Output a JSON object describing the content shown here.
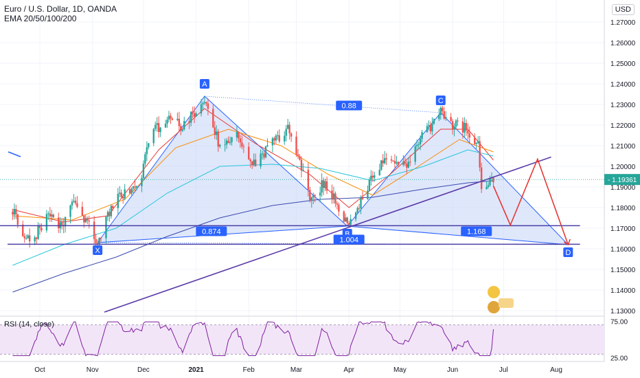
{
  "header": {
    "symbol_title": "Euro / U.S. Dollar, 1D, OANDA",
    "indicator": "EMA 20/50/100/200",
    "currency": "USD",
    "rsi_label": "RSI (14, close)"
  },
  "colors": {
    "up": "#26a69a",
    "down": "#ef5350",
    "ema20": "#e53935",
    "ema50": "#fb8c00",
    "ema100": "#26c6da",
    "ema200": "#3949ab",
    "pattern_fill": "#c5d3f7",
    "pattern_line": "#2962ff",
    "level_line": "#4a3fa6",
    "trend_line": "#5b3aa8",
    "projection": "#e53935",
    "rsi_line": "#7e1fa0",
    "rsi_band": "#f3e5f8",
    "price_label": "#26a69a"
  },
  "chart_data": {
    "type": "candlestick",
    "title": "Euro / U.S. Dollar, 1D, OANDA",
    "x_tick_labels": [
      "Oct",
      "Nov",
      "Dec",
      "2021",
      "Feb",
      "Mar",
      "Apr",
      "May",
      "Jun",
      "Jul",
      "Aug"
    ],
    "x_ticks": [
      "2020-10-01",
      "2020-11-01",
      "2020-12-01",
      "2021-01-01",
      "2021-02-01",
      "2021-03-01",
      "2021-04-01",
      "2021-05-01",
      "2021-06-01",
      "2021-07-01",
      "2021-08-01"
    ],
    "y_tick_labels": [
      "1.27000",
      "1.26000",
      "1.25000",
      "1.24000",
      "1.23000",
      "1.22000",
      "1.21000",
      "1.20000",
      "1.19000",
      "1.18000",
      "1.17000",
      "1.16000",
      "1.15000",
      "1.14000",
      "1.13000"
    ],
    "y_ticks": [
      1.27,
      1.26,
      1.25,
      1.24,
      1.23,
      1.22,
      1.21,
      1.2,
      1.19,
      1.18,
      1.17,
      1.16,
      1.15,
      1.14,
      1.13
    ],
    "ylim": [
      1.128,
      1.278
    ],
    "last_price": "1.19361",
    "price_anchors": [
      [
        "2020-09-15",
        1.178
      ],
      [
        "2020-09-25",
        1.163
      ],
      [
        "2020-10-05",
        1.175
      ],
      [
        "2020-10-15",
        1.172
      ],
      [
        "2020-10-21",
        1.184
      ],
      [
        "2020-11-04",
        1.164
      ],
      [
        "2020-11-13",
        1.182
      ],
      [
        "2020-11-20",
        1.186
      ],
      [
        "2020-11-30",
        1.195
      ],
      [
        "2020-12-04",
        1.214
      ],
      [
        "2020-12-17",
        1.226
      ],
      [
        "2020-12-24",
        1.218
      ],
      [
        "2021-01-06",
        1.234
      ],
      [
        "2021-01-15",
        1.209
      ],
      [
        "2021-01-25",
        1.216
      ],
      [
        "2021-02-05",
        1.199
      ],
      [
        "2021-02-15",
        1.213
      ],
      [
        "2021-02-25",
        1.218
      ],
      [
        "2021-03-09",
        1.186
      ],
      [
        "2021-03-18",
        1.192
      ],
      [
        "2021-03-31",
        1.172
      ],
      [
        "2021-04-12",
        1.19
      ],
      [
        "2021-04-21",
        1.203
      ],
      [
        "2021-05-05",
        1.2
      ],
      [
        "2021-05-14",
        1.214
      ],
      [
        "2021-05-25",
        1.226
      ],
      [
        "2021-06-02",
        1.22
      ],
      [
        "2021-06-10",
        1.218
      ],
      [
        "2021-06-16",
        1.21
      ],
      [
        "2021-06-18",
        1.188
      ],
      [
        "2021-06-21",
        1.19
      ],
      [
        "2021-06-25",
        1.193
      ]
    ],
    "ema_series": [
      {
        "name": "EMA 20",
        "points": [
          [
            "2020-09-15",
            1.179
          ],
          [
            "2020-10-15",
            1.173
          ],
          [
            "2020-11-10",
            1.176
          ],
          [
            "2020-12-10",
            1.208
          ],
          [
            "2021-01-06",
            1.228
          ],
          [
            "2021-02-05",
            1.211
          ],
          [
            "2021-03-09",
            1.196
          ],
          [
            "2021-04-01",
            1.18
          ],
          [
            "2021-04-25",
            1.196
          ],
          [
            "2021-05-25",
            1.218
          ],
          [
            "2021-06-10",
            1.218
          ],
          [
            "2021-06-25",
            1.203
          ]
        ]
      },
      {
        "name": "EMA 50",
        "points": [
          [
            "2020-09-15",
            1.176
          ],
          [
            "2020-10-20",
            1.174
          ],
          [
            "2020-11-20",
            1.184
          ],
          [
            "2020-12-20",
            1.209
          ],
          [
            "2021-01-20",
            1.218
          ],
          [
            "2021-02-20",
            1.21
          ],
          [
            "2021-03-20",
            1.196
          ],
          [
            "2021-04-15",
            1.186
          ],
          [
            "2021-05-10",
            1.199
          ],
          [
            "2021-06-05",
            1.213
          ],
          [
            "2021-06-25",
            1.207
          ]
        ]
      },
      {
        "name": "EMA 100",
        "points": [
          [
            "2020-09-15",
            1.152
          ],
          [
            "2020-10-15",
            1.162
          ],
          [
            "2020-11-15",
            1.17
          ],
          [
            "2020-12-15",
            1.187
          ],
          [
            "2021-01-15",
            1.2
          ],
          [
            "2021-02-15",
            1.201
          ],
          [
            "2021-03-15",
            1.199
          ],
          [
            "2021-04-15",
            1.193
          ],
          [
            "2021-05-15",
            1.2
          ],
          [
            "2021-06-10",
            1.208
          ],
          [
            "2021-06-25",
            1.205
          ]
        ]
      },
      {
        "name": "EMA 200",
        "points": [
          [
            "2020-09-15",
            1.139
          ],
          [
            "2020-10-15",
            1.148
          ],
          [
            "2020-11-15",
            1.156
          ],
          [
            "2020-12-15",
            1.166
          ],
          [
            "2021-01-15",
            1.175
          ],
          [
            "2021-02-15",
            1.181
          ],
          [
            "2021-03-15",
            1.184
          ],
          [
            "2021-04-15",
            1.185
          ],
          [
            "2021-05-15",
            1.189
          ],
          [
            "2021-06-10",
            1.192
          ],
          [
            "2021-06-25",
            1.193
          ]
        ]
      }
    ],
    "harmonic_pattern": {
      "points": [
        {
          "label": "X",
          "date": "2020-11-04",
          "price": 1.163
        },
        {
          "label": "A",
          "date": "2021-01-06",
          "price": 1.234
        },
        {
          "label": "B",
          "date": "2021-03-31",
          "price": 1.171
        },
        {
          "label": "C",
          "date": "2021-05-25",
          "price": 1.226
        },
        {
          "label": "D",
          "date": "2021-08-08",
          "price": 1.162
        }
      ],
      "ratios": [
        {
          "label": "0.874",
          "date": "2021-01-10",
          "price": 1.1685
        },
        {
          "label": "0.88",
          "date": "2021-04-01",
          "price": 1.2295
        },
        {
          "label": "1.004",
          "date": "2021-04-01",
          "price": 1.1645
        },
        {
          "label": "1.168",
          "date": "2021-06-15",
          "price": 1.1685
        }
      ]
    },
    "horizontal_levels": [
      {
        "price": 1.1712,
        "from": "2020-09-05",
        "to": "2021-08-15"
      },
      {
        "price": 1.1622,
        "from": "2020-09-12",
        "to": "2021-08-15"
      }
    ],
    "trend_lines": [
      {
        "from": [
          "2020-11-08",
          1.1293
        ],
        "to": [
          "2021-07-29",
          1.2045
        ]
      }
    ],
    "projection_path": [
      [
        "2021-06-25",
        1.1905
      ],
      [
        "2021-07-05",
        1.1715
      ],
      [
        "2021-07-21",
        1.2035
      ],
      [
        "2021-08-08",
        1.162
      ]
    ],
    "rsi": {
      "label": "RSI (14, close)",
      "upper_band": 70,
      "lower_band": 30,
      "tick_labels": [
        "75.00",
        "25.00"
      ],
      "ticks": [
        75,
        25
      ],
      "ylim": [
        20,
        80
      ]
    },
    "grid": true
  }
}
